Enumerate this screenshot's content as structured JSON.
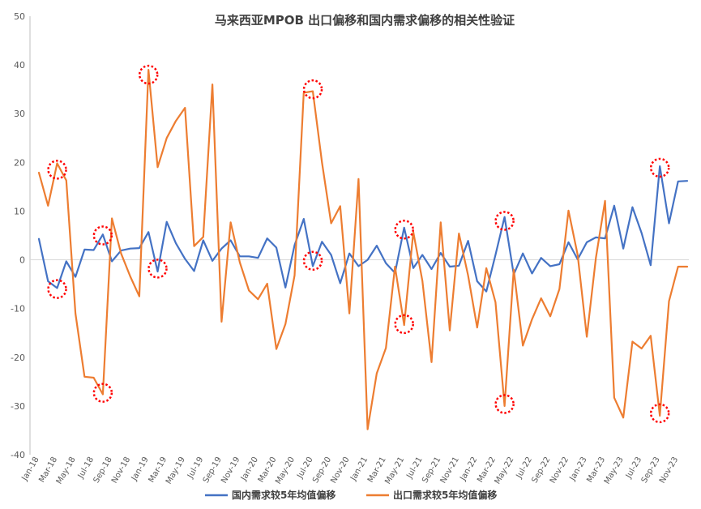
{
  "chart_data": {
    "type": "line",
    "title": "马来西亚MPOB 出口偏移和国内需求偏移的相关性验证",
    "xlabel": "",
    "ylabel": "",
    "ylim": [
      -40,
      50
    ],
    "yticks": [
      -40,
      -30,
      -20,
      -10,
      0,
      10,
      20,
      30,
      40,
      50
    ],
    "grid": false,
    "legend_position": "bottom",
    "x": [
      "Jan-18",
      "Feb-18",
      "Mar-18",
      "Apr-18",
      "May-18",
      "Jun-18",
      "Jul-18",
      "Aug-18",
      "Sep-18",
      "Oct-18",
      "Nov-18",
      "Dec-18",
      "Jan-19",
      "Feb-19",
      "Mar-19",
      "Apr-19",
      "May-19",
      "Jun-19",
      "Jul-19",
      "Aug-19",
      "Sep-19",
      "Oct-19",
      "Nov-19",
      "Dec-19",
      "Jan-20",
      "Feb-20",
      "Mar-20",
      "Apr-20",
      "May-20",
      "Jun-20",
      "Jul-20",
      "Aug-20",
      "Sep-20",
      "Oct-20",
      "Nov-20",
      "Dec-20",
      "Jan-21",
      "Feb-21",
      "Mar-21",
      "Apr-21",
      "May-21",
      "Jun-21",
      "Jul-21",
      "Aug-21",
      "Sep-21",
      "Oct-21",
      "Nov-21",
      "Dec-21",
      "Jan-22",
      "Feb-22",
      "Mar-22",
      "Apr-22",
      "May-22",
      "Jun-22",
      "Jul-22",
      "Aug-22",
      "Sep-22",
      "Oct-22",
      "Nov-22",
      "Dec-22",
      "Jan-23",
      "Feb-23",
      "Mar-23",
      "Apr-23",
      "May-23",
      "Jun-23",
      "Jul-23",
      "Aug-23",
      "Sep-23",
      "Oct-23",
      "Nov-23",
      "Dec-23"
    ],
    "xtick_labels": [
      "Jan-18",
      "Mar-18",
      "May-18",
      "Jul-18",
      "Sep-18",
      "Nov-18",
      "Jan-19",
      "Mar-19",
      "May-19",
      "Jul-19",
      "Sep-19",
      "Nov-19",
      "Jan-20",
      "Mar-20",
      "May-20",
      "Jul-20",
      "Sep-20",
      "Nov-20",
      "Jan-21",
      "Mar-21",
      "May-21",
      "Jul-21",
      "Sep-21",
      "Nov-21",
      "Jan-22",
      "Mar-22",
      "May-22",
      "Jul-22",
      "Sep-22",
      "Nov-22",
      "Jan-23",
      "Mar-23",
      "May-23",
      "Jul-23",
      "Sep-23",
      "Nov-23"
    ],
    "series": [
      {
        "name": "国内需求较5年均值偏移",
        "color": "#4472C4",
        "values": [
          4.3,
          -4.4,
          -5.8,
          -0.3,
          -3.5,
          2.1,
          2.0,
          5.2,
          -0.3,
          1.9,
          2.3,
          2.4,
          5.7,
          -2.4,
          7.8,
          3.4,
          0.2,
          -2.3,
          4.0,
          -0.2,
          2.3,
          4.0,
          0.7,
          0.7,
          0.4,
          4.4,
          2.5,
          -5.7,
          3.0,
          8.4,
          -1.3,
          3.7,
          1.0,
          -4.8,
          1.3,
          -1.3,
          0.0,
          2.9,
          -0.7,
          -2.7,
          6.6,
          -1.7,
          1.0,
          -1.9,
          1.4,
          -1.4,
          -1.2,
          3.9,
          -4.4,
          -6.5,
          1.0,
          8.8,
          -3.0,
          1.3,
          -2.8,
          0.4,
          -1.3,
          -0.9,
          3.6,
          0.1,
          3.6,
          4.6,
          4.4,
          11.1,
          2.3,
          10.8,
          5.5,
          -1.1,
          19.2,
          7.5,
          16.1,
          16.2
        ]
      },
      {
        "name": "出口需求较5年均值偏移",
        "color": "#ED7D31",
        "values": [
          17.9,
          11.1,
          19.8,
          16.3,
          -11.0,
          -24.0,
          -24.2,
          -27.6,
          8.5,
          1.3,
          -3.4,
          -7.5,
          39.0,
          19.0,
          25.0,
          28.5,
          31.2,
          2.8,
          4.7,
          36.0,
          -12.7,
          7.7,
          -0.5,
          -6.3,
          -8.1,
          -4.9,
          -18.3,
          -13.2,
          -3.2,
          34.3,
          34.6,
          20.0,
          7.5,
          11.0,
          -11.0,
          16.6,
          -34.8,
          -23.3,
          -18.1,
          -1.4,
          -13.4,
          5.7,
          -4.3,
          -21.0,
          7.7,
          -14.5,
          5.4,
          -3.2,
          -13.9,
          -1.7,
          -8.7,
          -30.0,
          -2.0,
          -17.6,
          -12.2,
          -7.9,
          -11.6,
          -6.0,
          10.1,
          1.0,
          -15.8,
          0.4,
          12.1,
          -28.3,
          -32.4,
          -16.8,
          -18.2,
          -15.6,
          -32.0,
          -8.5,
          -1.4,
          -1.4
        ]
      }
    ],
    "annotations": {
      "type": "dotted-red-circles",
      "color": "#FF0000",
      "markers": [
        {
          "x": "Mar-18",
          "y": 18.5
        },
        {
          "x": "Mar-18",
          "y": -6.0
        },
        {
          "x": "Aug-18",
          "y": 5.0
        },
        {
          "x": "Aug-18",
          "y": -27.3
        },
        {
          "x": "Jan-19",
          "y": 38.0
        },
        {
          "x": "Feb-19",
          "y": -1.8
        },
        {
          "x": "Jul-20",
          "y": 35.0
        },
        {
          "x": "Jul-20",
          "y": -0.2
        },
        {
          "x": "May-21",
          "y": 6.2
        },
        {
          "x": "May-21",
          "y": -13.2
        },
        {
          "x": "Apr-22",
          "y": 8.0
        },
        {
          "x": "Apr-22",
          "y": -29.6
        },
        {
          "x": "Sep-23",
          "y": 18.9
        },
        {
          "x": "Sep-23",
          "y": -31.5
        }
      ]
    }
  }
}
